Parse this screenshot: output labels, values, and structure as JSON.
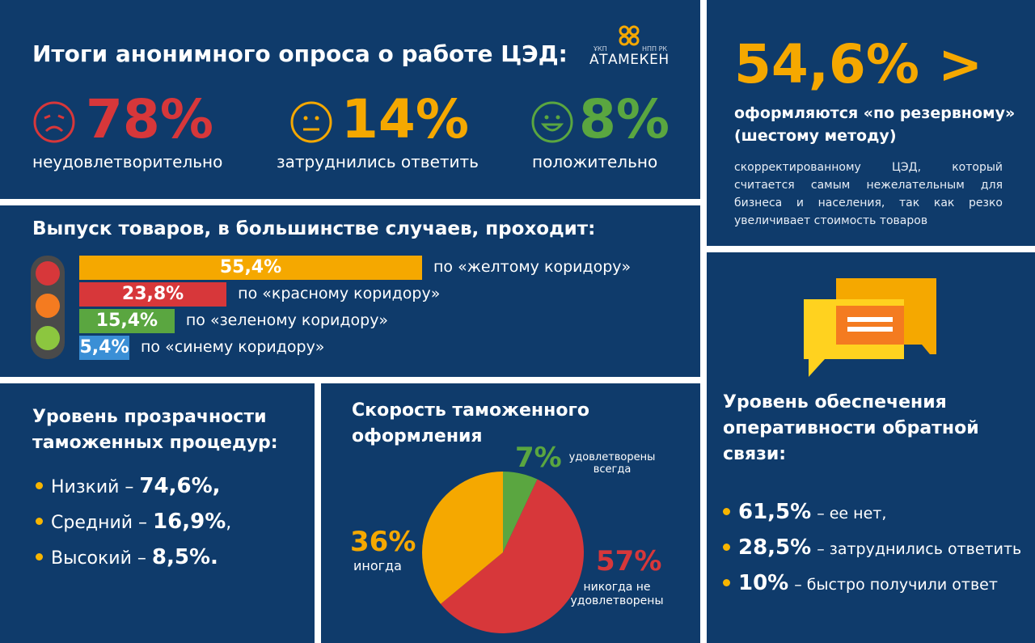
{
  "colors": {
    "panel": "#0f3b6b",
    "red": "#d7373a",
    "yellow": "#f5a800",
    "green": "#5aa640",
    "blue": "#3a8fd6",
    "orange": "#f47b20"
  },
  "header": {
    "title": "Итоги анонимного опроса о работе ЦЭД:",
    "logo": {
      "small_left": "ҰКП",
      "small_right": "НПП РК",
      "name": "АТАМЕКЕН"
    }
  },
  "survey_results": [
    {
      "icon": "sad-face-icon",
      "value": "78%",
      "label": "неудовлетворительно",
      "color": "#d7373a"
    },
    {
      "icon": "neutral-face-icon",
      "value": "14%",
      "label": "затруднились ответить",
      "color": "#f5a800"
    },
    {
      "icon": "happy-face-icon",
      "value": "8%",
      "label": "положительно",
      "color": "#5aa640"
    }
  ],
  "reserve": {
    "value": "54,6% >",
    "subtitle": "оформляются «по резервному» (шестому методу)",
    "text": "скорректированному ЦЭД, который считается самым нежелательным для бизнеса и населения, так как резко увеличивает стоимость товаров"
  },
  "chart_data": [
    {
      "type": "bar",
      "title": "Выпуск товаров, в большинстве случаев, проходит:",
      "categories": [
        "по «желтому коридору»",
        "по «красному коридору»",
        "по «зеленому коридору»",
        "по «синему коридору»"
      ],
      "values": [
        55.4,
        23.8,
        15.4,
        5.4
      ],
      "value_labels": [
        "55,4%",
        "23,8%",
        "15,4%",
        "5,4%"
      ],
      "colors": [
        "#f5a800",
        "#d7373a",
        "#5aa640",
        "#3a8fd6"
      ],
      "orientation": "horizontal",
      "xlim": [
        0,
        55.4
      ]
    },
    {
      "type": "pie",
      "title": "Скорость таможенного оформления",
      "slices": [
        {
          "value": 7,
          "label": "7%",
          "name": "удовлетворены всегда",
          "color": "#5aa640"
        },
        {
          "value": 57,
          "label": "57%",
          "name": "никогда не удовлетворены",
          "color": "#d7373a"
        },
        {
          "value": 36,
          "label": "36%",
          "name": "иногда",
          "color": "#f5a800"
        }
      ]
    }
  ],
  "transparency": {
    "title": "Уровень прозрачности таможенных процедур:",
    "items": [
      {
        "label": "Низкий –",
        "value": "74,6%,"
      },
      {
        "label": "Средний –",
        "value": "16,9%",
        "suffix": ","
      },
      {
        "label": "Высокий –",
        "value": "8,5%."
      }
    ]
  },
  "feedback": {
    "title": "Уровень обеспечения оперативности обратной связи:",
    "items": [
      {
        "value": "61,5%",
        "label": "– ее нет,"
      },
      {
        "value": "28,5%",
        "label": "– затруднились ответить"
      },
      {
        "value": "10%",
        "label": "– быстро получили ответ"
      }
    ]
  }
}
